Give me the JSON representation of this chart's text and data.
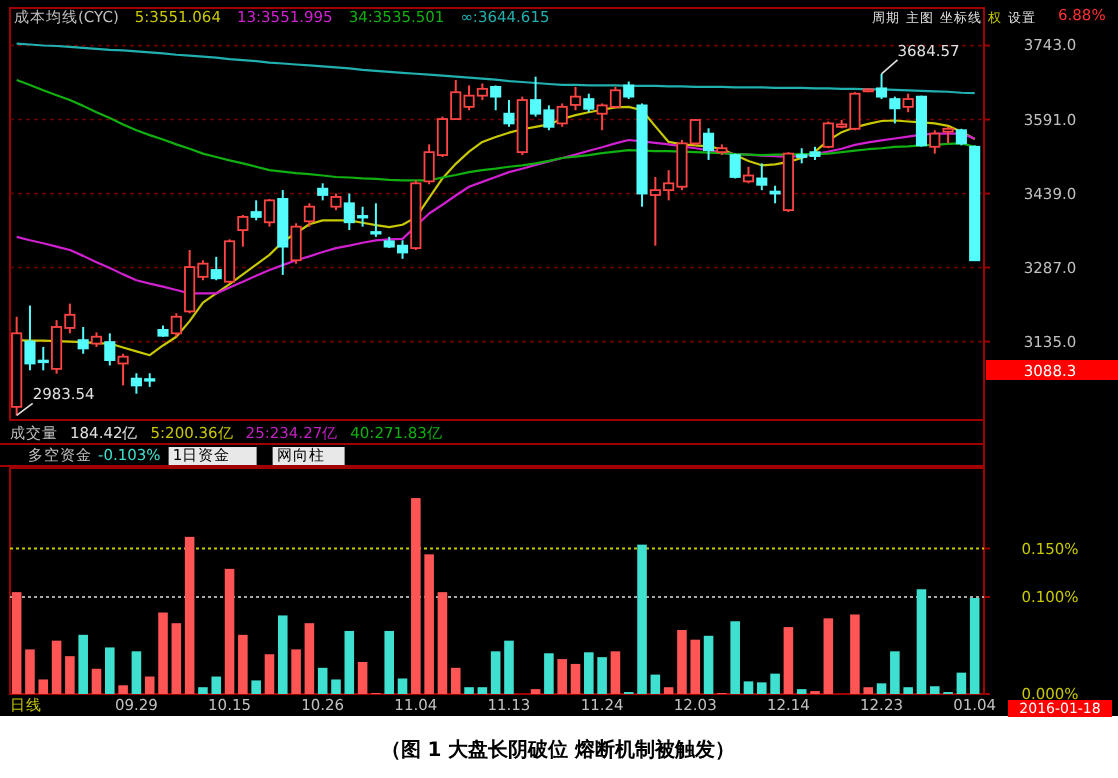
{
  "chart_data": [
    {
      "type": "candlestick",
      "title": "成本均线(CYC)",
      "categories": [
        null,
        null,
        null,
        null,
        null,
        null,
        null,
        null,
        null,
        null,
        null,
        null,
        null,
        null,
        null,
        null,
        null,
        null,
        null,
        null,
        null,
        null,
        null,
        null,
        null,
        null,
        null,
        null,
        null,
        null,
        null,
        null,
        null,
        null,
        null,
        null,
        null,
        null,
        null,
        null,
        null,
        null,
        null,
        null,
        null,
        null,
        null,
        null,
        null,
        null,
        null,
        null,
        null,
        null,
        null,
        null,
        null,
        null,
        null,
        null,
        null,
        null,
        null,
        null,
        null,
        null,
        null,
        null,
        null,
        null,
        null,
        null,
        null
      ],
      "ohlc": [
        [
          3001,
          3186,
          2983.54,
          3152
        ],
        [
          3135,
          3209,
          3076,
          3090
        ],
        [
          3096,
          3124,
          3076,
          3094
        ],
        [
          3079,
          3179,
          3069,
          3165
        ],
        [
          3163,
          3213,
          3152,
          3190
        ],
        [
          3138,
          3165,
          3110,
          3121
        ],
        [
          3131,
          3154,
          3124,
          3145
        ],
        [
          3134,
          3152,
          3086,
          3097
        ],
        [
          3090,
          3110,
          3045,
          3104
        ],
        [
          3059,
          3070,
          3028,
          3045
        ],
        [
          3058,
          3070,
          3042,
          3056
        ],
        [
          3159,
          3168,
          3145,
          3147
        ],
        [
          3152,
          3193,
          3145,
          3186
        ],
        [
          3197,
          3323,
          3193,
          3288
        ],
        [
          3268,
          3302,
          3261,
          3295
        ],
        [
          3282,
          3309,
          3261,
          3265
        ],
        [
          3258,
          3345,
          3255,
          3341
        ],
        [
          3364,
          3395,
          3330,
          3391
        ],
        [
          3401,
          3425,
          3384,
          3391
        ],
        [
          3380,
          3428,
          3371,
          3425
        ],
        [
          3428,
          3446,
          3272,
          3330
        ],
        [
          3302,
          3378,
          3295,
          3371
        ],
        [
          3382,
          3419,
          3371,
          3412
        ],
        [
          3449,
          3460,
          3425,
          3436
        ],
        [
          3412,
          3439,
          3405,
          3432
        ],
        [
          3419,
          3439,
          3364,
          3380
        ],
        [
          3393,
          3412,
          3371,
          3391
        ],
        [
          3360,
          3419,
          3350,
          3357
        ],
        [
          3341,
          3350,
          3327,
          3330
        ],
        [
          3332,
          3343,
          3305,
          3318
        ],
        [
          3327,
          3466,
          3323,
          3460
        ],
        [
          3464,
          3540,
          3458,
          3524
        ],
        [
          3518,
          3597,
          3514,
          3592
        ],
        [
          3592,
          3672,
          3590,
          3647
        ],
        [
          3617,
          3661,
          3610,
          3640
        ],
        [
          3640,
          3665,
          3631,
          3654
        ],
        [
          3658,
          3661,
          3610,
          3638
        ],
        [
          3603,
          3631,
          3576,
          3583
        ],
        [
          3524,
          3638,
          3518,
          3631
        ],
        [
          3631,
          3679,
          3597,
          3603
        ],
        [
          3610,
          3620,
          3569,
          3576
        ],
        [
          3583,
          3624,
          3576,
          3617
        ],
        [
          3621,
          3658,
          3610,
          3638
        ],
        [
          3633,
          3644,
          3606,
          3613
        ],
        [
          3603,
          3624,
          3569,
          3620
        ],
        [
          3617,
          3658,
          3614,
          3651
        ],
        [
          3661,
          3669,
          3633,
          3638
        ],
        [
          3620,
          3624,
          3412,
          3439
        ],
        [
          3436,
          3473,
          3332,
          3446
        ],
        [
          3446,
          3487,
          3425,
          3460
        ],
        [
          3453,
          3549,
          3446,
          3542
        ],
        [
          3542,
          3592,
          3538,
          3590
        ],
        [
          3562,
          3573,
          3508,
          3528
        ],
        [
          3524,
          3540,
          3518,
          3532
        ],
        [
          3518,
          3521,
          3470,
          3473
        ],
        [
          3464,
          3494,
          3460,
          3476
        ],
        [
          3470,
          3501,
          3446,
          3457
        ],
        [
          3443,
          3455,
          3419,
          3439
        ],
        [
          3405,
          3524,
          3401,
          3521
        ],
        [
          3518,
          3532,
          3501,
          3514
        ],
        [
          3524,
          3535,
          3508,
          3516
        ],
        [
          3535,
          3587,
          3532,
          3583
        ],
        [
          3576,
          3590,
          3573,
          3581
        ],
        [
          3572,
          3647,
          3569,
          3644
        ],
        [
          3649,
          3655,
          3647,
          3653
        ],
        [
          3655,
          3684.57,
          3633,
          3638
        ],
        [
          3633,
          3638,
          3583,
          3614
        ],
        [
          3617,
          3644,
          3606,
          3633
        ],
        [
          3638,
          3640,
          3535,
          3538
        ],
        [
          3535,
          3569,
          3521,
          3562
        ],
        [
          3566,
          3576,
          3542,
          3572
        ],
        [
          3569,
          3572,
          3538,
          3542
        ],
        [
          3535,
          3538,
          3302,
          3302
        ]
      ],
      "series": [
        {
          "type": "line",
          "name": "5:3551.064",
          "color": "#c8c800",
          "values": [
            3138,
            3137,
            3137,
            3136,
            3135,
            3134,
            3132,
            3131,
            3123,
            3115,
            3107,
            3127,
            3145,
            3177,
            3215,
            3234,
            3253,
            3273,
            3293,
            3313,
            3340,
            3358,
            3376,
            3384,
            3384,
            3384,
            3379,
            3374,
            3370,
            3375,
            3390,
            3430,
            3470,
            3500,
            3525,
            3545,
            3555,
            3564,
            3571,
            3576,
            3581,
            3592,
            3600,
            3606,
            3611,
            3616,
            3617,
            3610,
            3577,
            3545,
            3540,
            3538,
            3536,
            3530,
            3518,
            3506,
            3497,
            3499,
            3504,
            3512,
            3525,
            3548,
            3565,
            3575,
            3582,
            3588,
            3589,
            3587,
            3585,
            3583,
            3578,
            3566,
            3551
          ]
        },
        {
          "type": "line",
          "name": "13:3551.995",
          "color": "#d020d0",
          "values": [
            3350,
            3343,
            3337,
            3330,
            3323,
            3311,
            3298,
            3286,
            3273,
            3261,
            3254,
            3248,
            3241,
            3234,
            3234,
            3234,
            3246,
            3258,
            3270,
            3282,
            3292,
            3302,
            3310,
            3319,
            3327,
            3332,
            3338,
            3343,
            3345,
            3346,
            3372,
            3398,
            3416,
            3435,
            3453,
            3463,
            3473,
            3483,
            3490,
            3498,
            3505,
            3512,
            3519,
            3527,
            3534,
            3542,
            3549,
            3546,
            3543,
            3540,
            3536,
            3532,
            3528,
            3523,
            3520,
            3519,
            3517,
            3516,
            3514,
            3517,
            3520,
            3525,
            3531,
            3539,
            3544,
            3548,
            3552,
            3556,
            3560,
            3562,
            3562,
            3562,
            3552
          ]
        },
        {
          "type": "line",
          "name": "34:3535.501",
          "color": "#10b010",
          "values": [
            3672,
            3662,
            3651,
            3641,
            3631,
            3619,
            3606,
            3594,
            3581,
            3569,
            3559,
            3550,
            3540,
            3531,
            3521,
            3514,
            3507,
            3501,
            3494,
            3487,
            3484,
            3481,
            3479,
            3476,
            3473,
            3472,
            3470,
            3469,
            3467,
            3466,
            3466,
            3466,
            3472,
            3477,
            3483,
            3487,
            3490,
            3494,
            3497,
            3501,
            3506,
            3512,
            3515,
            3518,
            3522,
            3525,
            3528,
            3527,
            3526,
            3526,
            3525,
            3524,
            3523,
            3522,
            3520,
            3519,
            3518,
            3519,
            3519,
            3520,
            3520,
            3521,
            3524,
            3527,
            3530,
            3532,
            3535,
            3536,
            3538,
            3539,
            3541,
            3542,
            3535
          ]
        },
        {
          "type": "line",
          "name": "∞:3644.615",
          "color": "#20b0b0",
          "values": [
            3747,
            3745,
            3743,
            3742,
            3740,
            3738,
            3736,
            3734,
            3733,
            3731,
            3729,
            3727,
            3724,
            3722,
            3720,
            3718,
            3715,
            3713,
            3711,
            3708,
            3706,
            3704,
            3702,
            3700,
            3698,
            3696,
            3693,
            3691,
            3689,
            3687,
            3685,
            3683,
            3681,
            3679,
            3677,
            3675,
            3673,
            3670,
            3668,
            3666,
            3664,
            3662,
            3662,
            3661,
            3661,
            3661,
            3660,
            3660,
            3660,
            3659,
            3659,
            3658,
            3658,
            3658,
            3657,
            3657,
            3657,
            3656,
            3656,
            3656,
            3655,
            3655,
            3654,
            3654,
            3653,
            3653,
            3652,
            3651,
            3650,
            3649,
            3648,
            3646,
            3645
          ]
        }
      ],
      "ylim": [
        2974,
        3820
      ],
      "yticks": [
        {
          "value": 3135,
          "label": "3135.0"
        },
        {
          "value": 3287,
          "label": "3287.0"
        },
        {
          "value": 3439,
          "label": "3439.0"
        },
        {
          "value": 3591,
          "label": "3591.0"
        },
        {
          "value": 3743,
          "label": "3743.0"
        }
      ],
      "grid": "y",
      "annotations": [
        "周期",
        "主图",
        "坐标线",
        "权",
        "设置",
        "6.88%",
        "3088.3",
        "2983.54",
        "3684.57"
      ]
    },
    {
      "type": "bar",
      "title": "多空资金",
      "categories": [
        null,
        null,
        null,
        null,
        null,
        null,
        null,
        null,
        null,
        "09.29",
        null,
        null,
        null,
        null,
        null,
        null,
        "10.15",
        null,
        null,
        null,
        null,
        null,
        null,
        "10.26",
        null,
        null,
        null,
        null,
        null,
        null,
        "11.04",
        null,
        null,
        null,
        null,
        null,
        null,
        "11.13",
        null,
        null,
        null,
        null,
        null,
        null,
        "11.24",
        null,
        null,
        null,
        null,
        null,
        null,
        "12.03",
        null,
        null,
        null,
        null,
        null,
        null,
        "12.14",
        null,
        null,
        null,
        null,
        null,
        null,
        "12.23",
        null,
        null,
        null,
        null,
        null,
        null,
        "01.04"
      ],
      "values": [
        0.105,
        0.046,
        0.015,
        0.055,
        0.039,
        0.061,
        0.026,
        0.048,
        0.009,
        0.044,
        0.018,
        0.084,
        0.073,
        0.162,
        0.007,
        0.018,
        0.129,
        0.061,
        0.014,
        0.041,
        0.081,
        0.046,
        0.073,
        0.027,
        0.015,
        0.065,
        0.033,
        0.001,
        0.065,
        0.016,
        0.202,
        0.144,
        0.105,
        0.027,
        0.007,
        0.007,
        0.044,
        0.055,
        0,
        0.005,
        0.042,
        0.036,
        0.031,
        0.043,
        0.038,
        0.044,
        0.002,
        0.154,
        0.02,
        0.007,
        0.066,
        0.056,
        0.06,
        0.001,
        0.075,
        0.013,
        0.012,
        0.021,
        0.069,
        0.005,
        0.003,
        0.078,
        0,
        0.082,
        0.007,
        0.011,
        0.044,
        0.007,
        0.108,
        0.008,
        0.002,
        0.022,
        0.099
      ],
      "colors": [
        "#ff5555",
        "#ff5555",
        "#ff5555",
        "#ff5555",
        "#ff5555",
        "#40e0d0",
        "#ff5555",
        "#40e0d0",
        "#ff5555",
        "#40e0d0",
        "#ff5555",
        "#ff5555",
        "#ff5555",
        "#ff5555",
        "#40e0d0",
        "#40e0d0",
        "#ff5555",
        "#ff5555",
        "#40e0d0",
        "#ff5555",
        "#40e0d0",
        "#ff5555",
        "#ff5555",
        "#40e0d0",
        "#40e0d0",
        "#40e0d0",
        "#ff5555",
        "#ff5555",
        "#40e0d0",
        "#40e0d0",
        "#ff5555",
        "#ff5555",
        "#ff5555",
        "#ff5555",
        "#40e0d0",
        "#40e0d0",
        "#40e0d0",
        "#40e0d0",
        "#ff5555",
        "#ff5555",
        "#40e0d0",
        "#ff5555",
        "#ff5555",
        "#40e0d0",
        "#40e0d0",
        "#ff5555",
        "#40e0d0",
        "#40e0d0",
        "#40e0d0",
        "#ff5555",
        "#ff5555",
        "#ff5555",
        "#40e0d0",
        "#ff5555",
        "#40e0d0",
        "#40e0d0",
        "#40e0d0",
        "#40e0d0",
        "#ff5555",
        "#40e0d0",
        "#ff5555",
        "#ff5555",
        "#ff5555",
        "#ff5555",
        "#ff5555",
        "#40e0d0",
        "#40e0d0",
        "#40e0d0",
        "#40e0d0",
        "#40e0d0",
        "#40e0d0",
        "#40e0d0",
        "#40e0d0"
      ],
      "ylim": [
        0,
        0.233
      ],
      "yticks": [
        {
          "value": 0,
          "label": "0.000%"
        },
        {
          "value": 0.1,
          "label": "0.100%"
        },
        {
          "value": 0.15,
          "label": "0.150%"
        }
      ],
      "ref_lines": [
        {
          "axis": "y",
          "value": 0.1,
          "color": "#aaaaaa",
          "line_style": "dotted"
        },
        {
          "axis": "y",
          "value": 0.15,
          "color": "#c8c800",
          "line_style": "dotted"
        }
      ],
      "annotations": [
        "成交量",
        "184.42亿",
        "5:200.36亿",
        "25:234.27亿",
        "40:271.83亿",
        "-0.103%",
        "1日资金",
        "网向柱",
        "日线",
        "2016-01-18",
        "（图 1  大盘长阴破位  熔断机制被触发）"
      ]
    }
  ]
}
